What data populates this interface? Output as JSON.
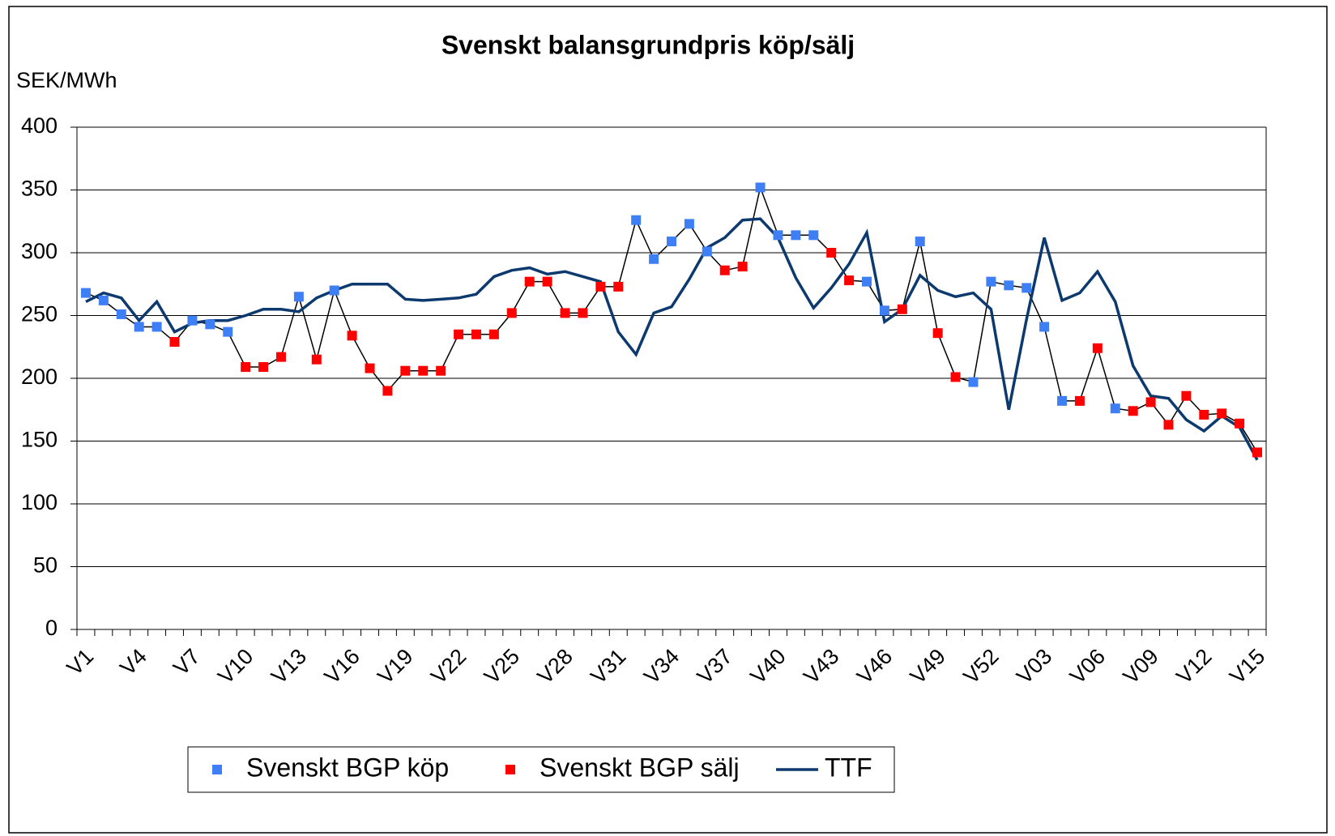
{
  "chart_data": {
    "type": "line",
    "title": "Svenskt balansgrundpris köp/sälj",
    "y_label": "SEK/MWh",
    "categories": [
      "V1",
      null,
      null,
      "V4",
      null,
      null,
      "V7",
      null,
      null,
      "V10",
      null,
      null,
      "V13",
      null,
      null,
      "V16",
      null,
      null,
      "V19",
      null,
      null,
      "V22",
      null,
      null,
      "V25",
      null,
      null,
      "V28",
      null,
      null,
      "V31",
      null,
      null,
      "V34",
      null,
      null,
      "V37",
      null,
      null,
      "V40",
      null,
      null,
      "V43",
      null,
      null,
      "V46",
      null,
      null,
      "V49",
      null,
      null,
      "V52",
      null,
      null,
      "V03",
      null,
      null,
      "V06",
      null,
      null,
      "V09",
      null,
      null,
      "V12",
      null,
      null,
      "V15"
    ],
    "series": [
      {
        "name": "Svenskt BGP köp",
        "color": "#3f7ff5",
        "marker": "square",
        "values": [
          268,
          262,
          251,
          241,
          241,
          null,
          246,
          243,
          237,
          null,
          null,
          null,
          265,
          null,
          270,
          null,
          null,
          null,
          null,
          null,
          null,
          null,
          null,
          null,
          null,
          null,
          null,
          null,
          null,
          null,
          null,
          326,
          295,
          309,
          323,
          301,
          null,
          null,
          352,
          314,
          314,
          314,
          null,
          null,
          277,
          254,
          null,
          309,
          null,
          null,
          197,
          277,
          274,
          272,
          241,
          182,
          null,
          null,
          176,
          null,
          null,
          null,
          null,
          null,
          null,
          null,
          null
        ]
      },
      {
        "name": "Svenskt BGP sälj",
        "color": "#ff0000",
        "marker": "square",
        "values": [
          null,
          null,
          null,
          null,
          null,
          229,
          null,
          null,
          null,
          209,
          209,
          217,
          null,
          215,
          null,
          234,
          208,
          190,
          206,
          206,
          206,
          235,
          235,
          235,
          252,
          277,
          277,
          252,
          252,
          273,
          273,
          null,
          null,
          null,
          null,
          null,
          286,
          289,
          null,
          null,
          null,
          null,
          300,
          278,
          null,
          null,
          255,
          null,
          236,
          201,
          null,
          null,
          null,
          null,
          null,
          null,
          182,
          224,
          null,
          174,
          181,
          163,
          186,
          171,
          172,
          164,
          141
        ]
      },
      {
        "name": "TTF",
        "color": "#0d3a6e",
        "marker": "none",
        "values": [
          261,
          268,
          264,
          246,
          261,
          237,
          244,
          246,
          246,
          250,
          255,
          255,
          253,
          264,
          270,
          275,
          275,
          275,
          263,
          262,
          263,
          264,
          267,
          281,
          286,
          288,
          283,
          285,
          281,
          277,
          237,
          219,
          252,
          257,
          279,
          304,
          312,
          326,
          327,
          312,
          280,
          256,
          272,
          291,
          316,
          245,
          255,
          282,
          270,
          265,
          268,
          255,
          175,
          247,
          312,
          262,
          268,
          285,
          261,
          210,
          186,
          184,
          167,
          158,
          170,
          161,
          135
        ]
      }
    ],
    "ylim": [
      0,
      400
    ],
    "yticks": [
      0,
      50,
      100,
      150,
      200,
      250,
      300,
      350,
      400
    ],
    "grid": true
  }
}
